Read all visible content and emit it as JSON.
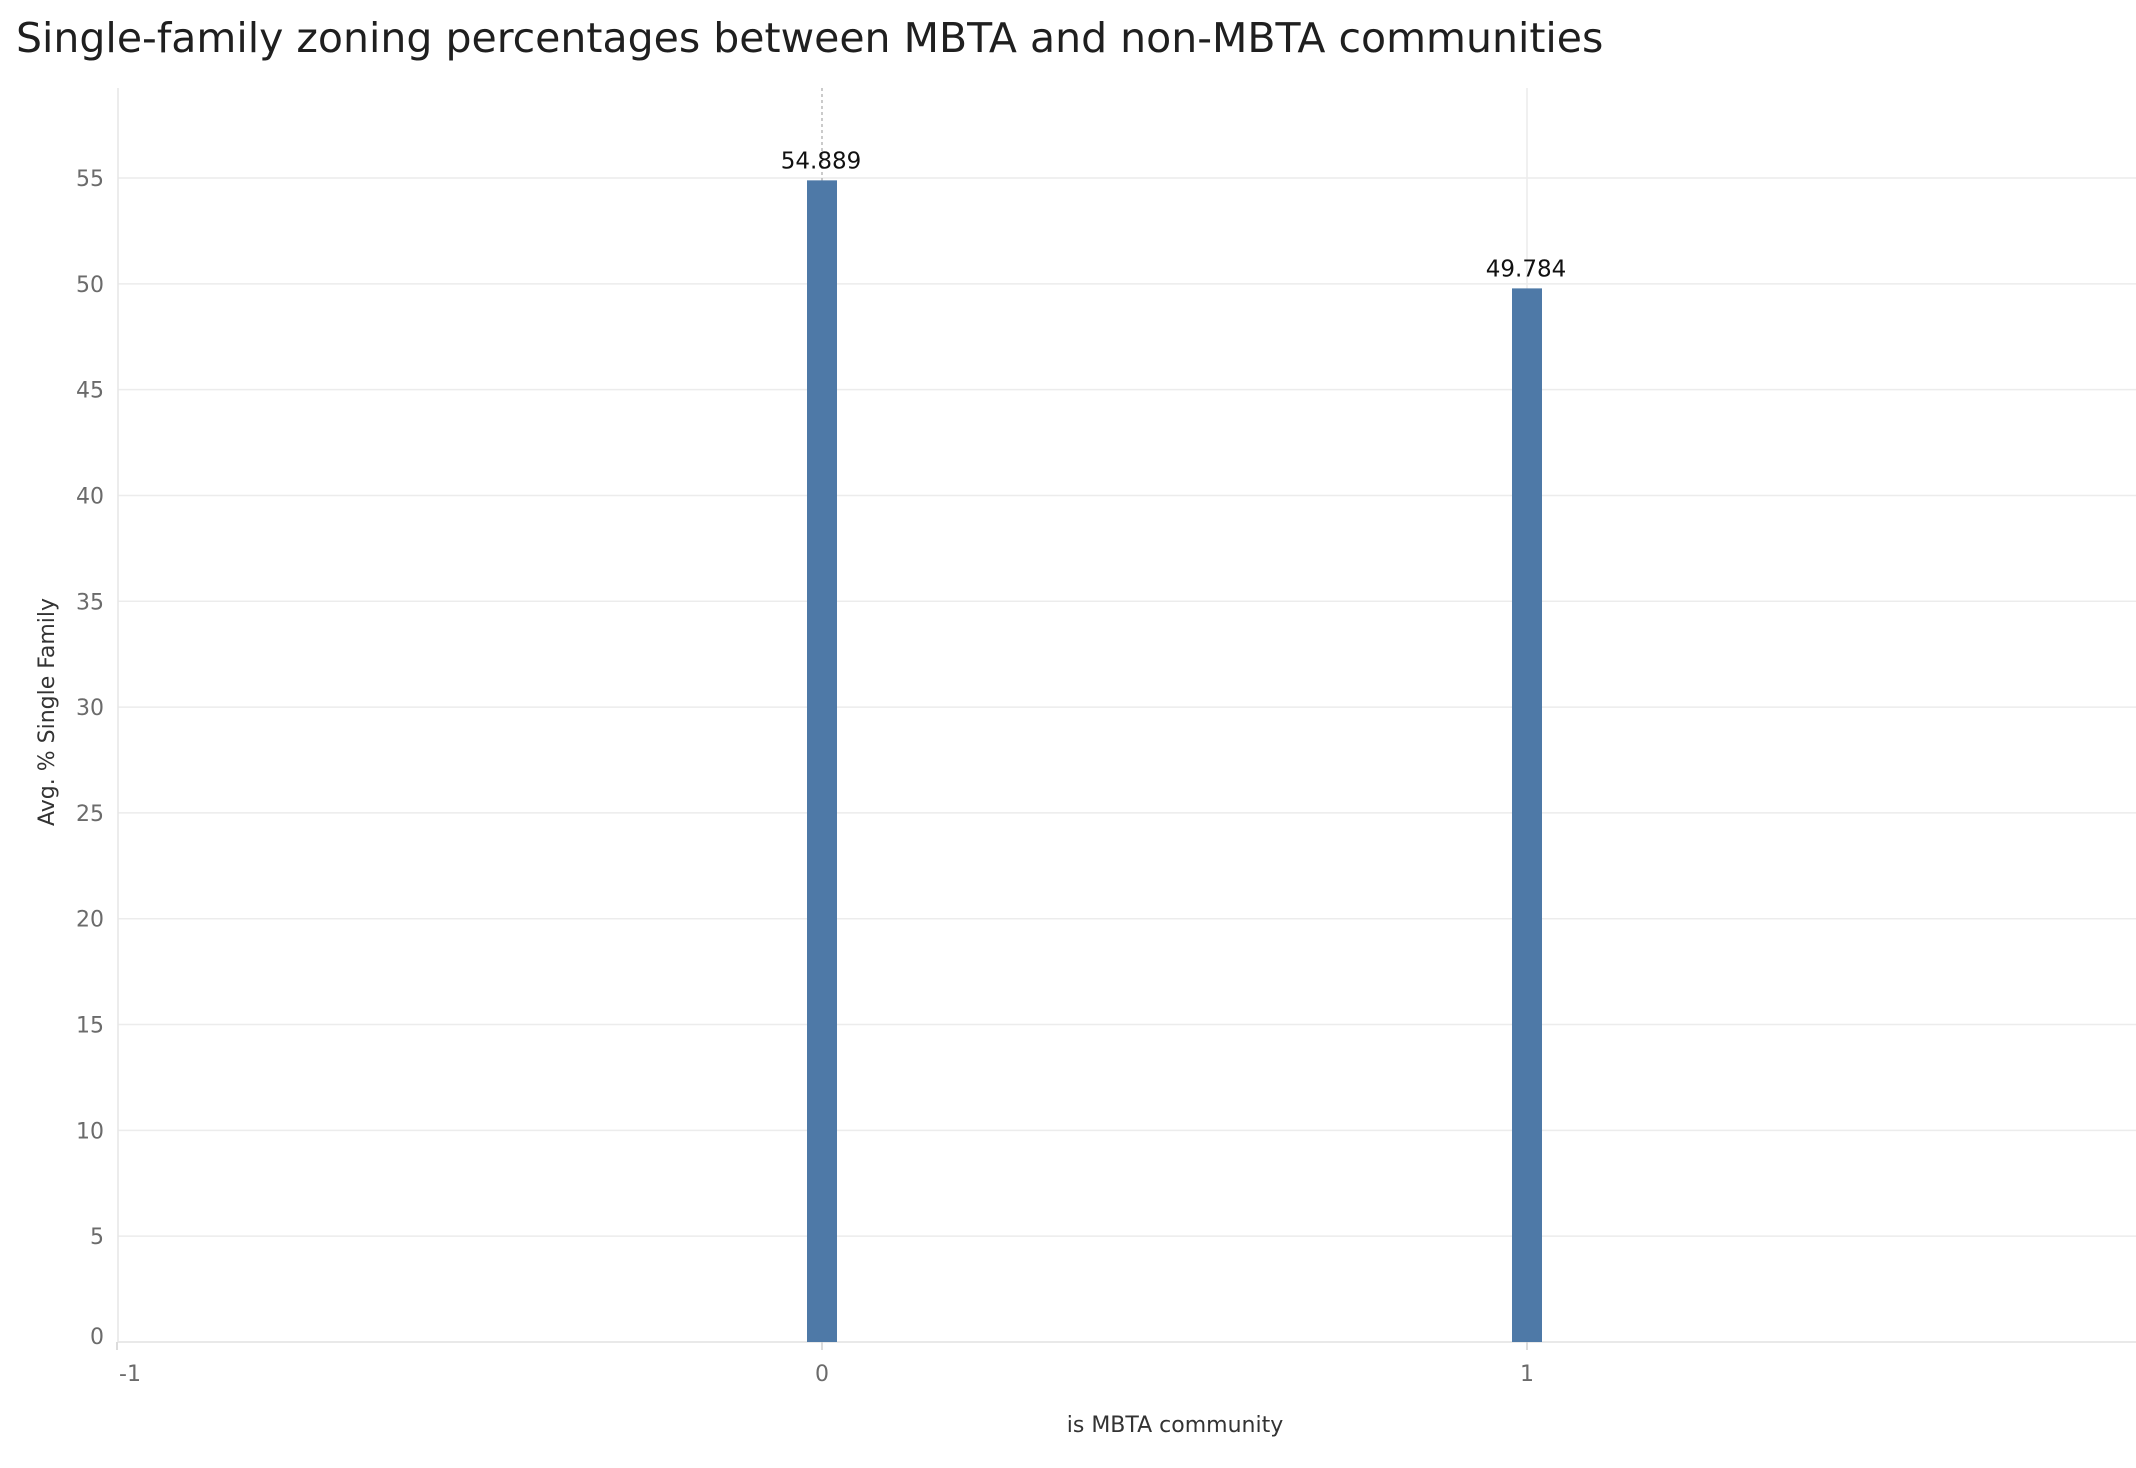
{
  "chart_data": {
    "type": "bar",
    "title": "Single-family zoning percentages between MBTA and non-MBTA communities",
    "xlabel": "is MBTA community",
    "ylabel": "Avg. % Single Family",
    "x_ticks": [
      "-1",
      "0",
      "1"
    ],
    "x_tick_values": [
      -1,
      0,
      1
    ],
    "xlim": [
      -1,
      2
    ],
    "y_ticks": [
      "0",
      "5",
      "10",
      "15",
      "20",
      "25",
      "30",
      "35",
      "40",
      "45",
      "50",
      "55"
    ],
    "y_tick_values": [
      0,
      5,
      10,
      15,
      20,
      25,
      30,
      35,
      40,
      45,
      50,
      55
    ],
    "ylim": [
      0,
      59
    ],
    "x": [
      0,
      1
    ],
    "values": [
      54.889,
      49.784
    ],
    "labels": [
      "54.889",
      "49.784"
    ],
    "bar_color": "#4e79a7",
    "grid": true,
    "legend": "none"
  }
}
